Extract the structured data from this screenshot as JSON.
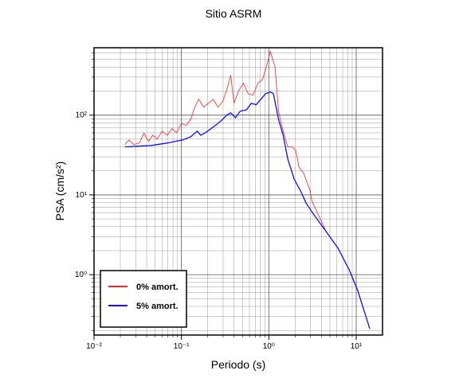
{
  "chart_data": {
    "type": "line",
    "title": "Sitio ASRM",
    "xlabel": "Periodo (s)",
    "ylabel": "PSA (cm/s²)",
    "xscale": "log",
    "yscale": "log",
    "xlim": [
      0.01,
      20
    ],
    "ylim": [
      0.175,
      700
    ],
    "xticks": [
      {
        "value": 0.01,
        "label": "10⁻²"
      },
      {
        "value": 0.1,
        "label": "10⁻¹"
      },
      {
        "value": 1,
        "label": "10⁰"
      },
      {
        "value": 10,
        "label": "10¹"
      }
    ],
    "yticks": [
      {
        "value": 1,
        "label": "10⁰"
      },
      {
        "value": 10,
        "label": "10¹"
      },
      {
        "value": 100,
        "label": "10²"
      }
    ],
    "grid": true,
    "minor_grid": true,
    "legend": "lower left",
    "series": [
      {
        "name": "0% amort.",
        "color": "#ff2020",
        "x": [
          0.0226,
          0.0251,
          0.0285,
          0.033,
          0.0372,
          0.042,
          0.047,
          0.053,
          0.06,
          0.069,
          0.078,
          0.088,
          0.1,
          0.113,
          0.128,
          0.142,
          0.158,
          0.179,
          0.204,
          0.231,
          0.262,
          0.297,
          0.337,
          0.366,
          0.4,
          0.45,
          0.51,
          0.58,
          0.66,
          0.75,
          0.85,
          0.96,
          1.04,
          1.18,
          1.29,
          1.46,
          1.65,
          1.87,
          2.04,
          2.21,
          2.51,
          2.97,
          3.1,
          4.5,
          6.2,
          8.4,
          10.4,
          14.3
        ],
        "values": [
          42.7,
          49,
          42.7,
          44.7,
          59.6,
          47,
          56,
          50,
          63,
          56,
          68,
          60,
          79,
          74.1,
          89,
          126,
          158,
          126,
          141,
          158,
          126,
          148,
          224,
          316,
          141,
          200,
          251,
          186,
          178,
          251,
          282,
          447,
          631,
          398,
          112,
          63,
          40,
          40,
          35.5,
          22.4,
          18.6,
          11.2,
          8.5,
          3.5,
          2.14,
          1.12,
          0.63,
          0.21
        ]
      },
      {
        "name": "5% amort.",
        "color": "#1010ee",
        "x": [
          0.0226,
          0.045,
          0.069,
          0.104,
          0.128,
          0.152,
          0.166,
          0.187,
          0.231,
          0.285,
          0.33,
          0.366,
          0.415,
          0.47,
          0.556,
          0.631,
          0.716,
          0.81,
          0.92,
          1.04,
          1.13,
          1.29,
          1.46,
          1.65,
          1.95,
          2.31,
          2.67,
          3.3,
          4.5,
          6.2,
          8.4,
          10.4,
          14.3
        ],
        "values": [
          40,
          41.7,
          44.7,
          49,
          53.7,
          63,
          56,
          60,
          70.8,
          85,
          100,
          107,
          93,
          112,
          117,
          141,
          135,
          158,
          186,
          195,
          186,
          89,
          56,
          28,
          15.8,
          11.2,
          7.9,
          5.6,
          3.5,
          2.14,
          1.12,
          0.63,
          0.21
        ]
      }
    ]
  }
}
